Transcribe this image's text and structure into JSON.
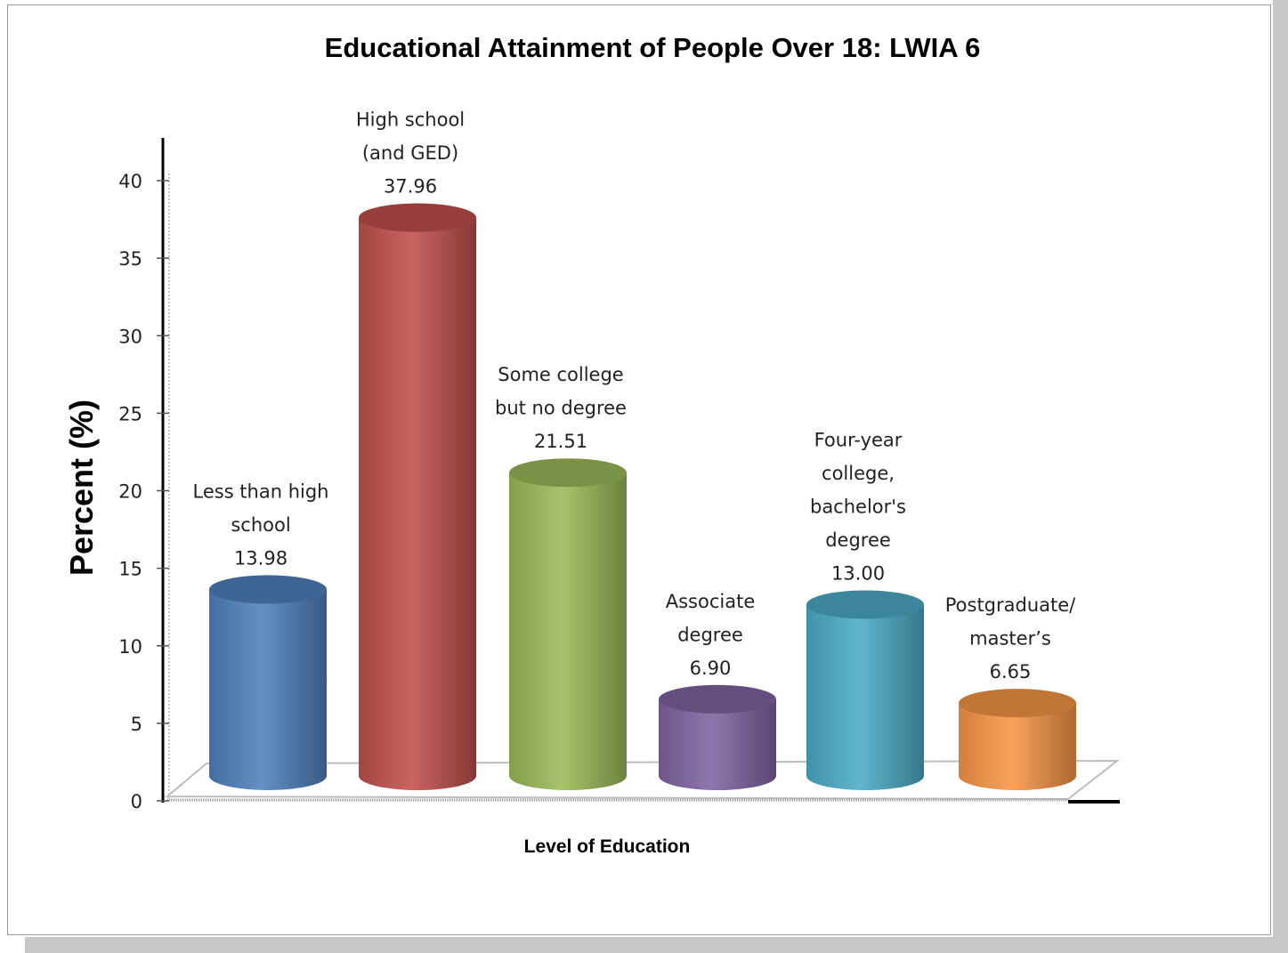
{
  "chart_data": {
    "type": "bar",
    "title": "Educational Attainment of People Over 18: LWIA 6",
    "xlabel": "Level of Education",
    "ylabel": "Percent (%)",
    "ylim": [
      0,
      40
    ],
    "yticks": [
      0,
      5,
      10,
      15,
      20,
      25,
      30,
      35,
      40
    ],
    "categories": [
      [
        "Less than high",
        "school"
      ],
      [
        "High school",
        "(and GED)"
      ],
      [
        "Some college",
        "but no degree"
      ],
      [
        "Associate",
        "degree"
      ],
      [
        "Four-year",
        "college,",
        "bachelor's",
        "degree"
      ],
      [
        "Postgraduate/",
        "master’s"
      ]
    ],
    "values": [
      13.98,
      37.96,
      21.51,
      6.9,
      13.0,
      6.65
    ],
    "value_labels": [
      "13.98",
      "37.96",
      "21.51",
      "6.90",
      "13.00",
      "6.65"
    ],
    "colors": [
      "#4f81bd",
      "#c0504d",
      "#9bbb59",
      "#8064a2",
      "#4bacc6",
      "#f79646"
    ],
    "style": "3d-cylinder",
    "grid": false,
    "legend": "none"
  }
}
